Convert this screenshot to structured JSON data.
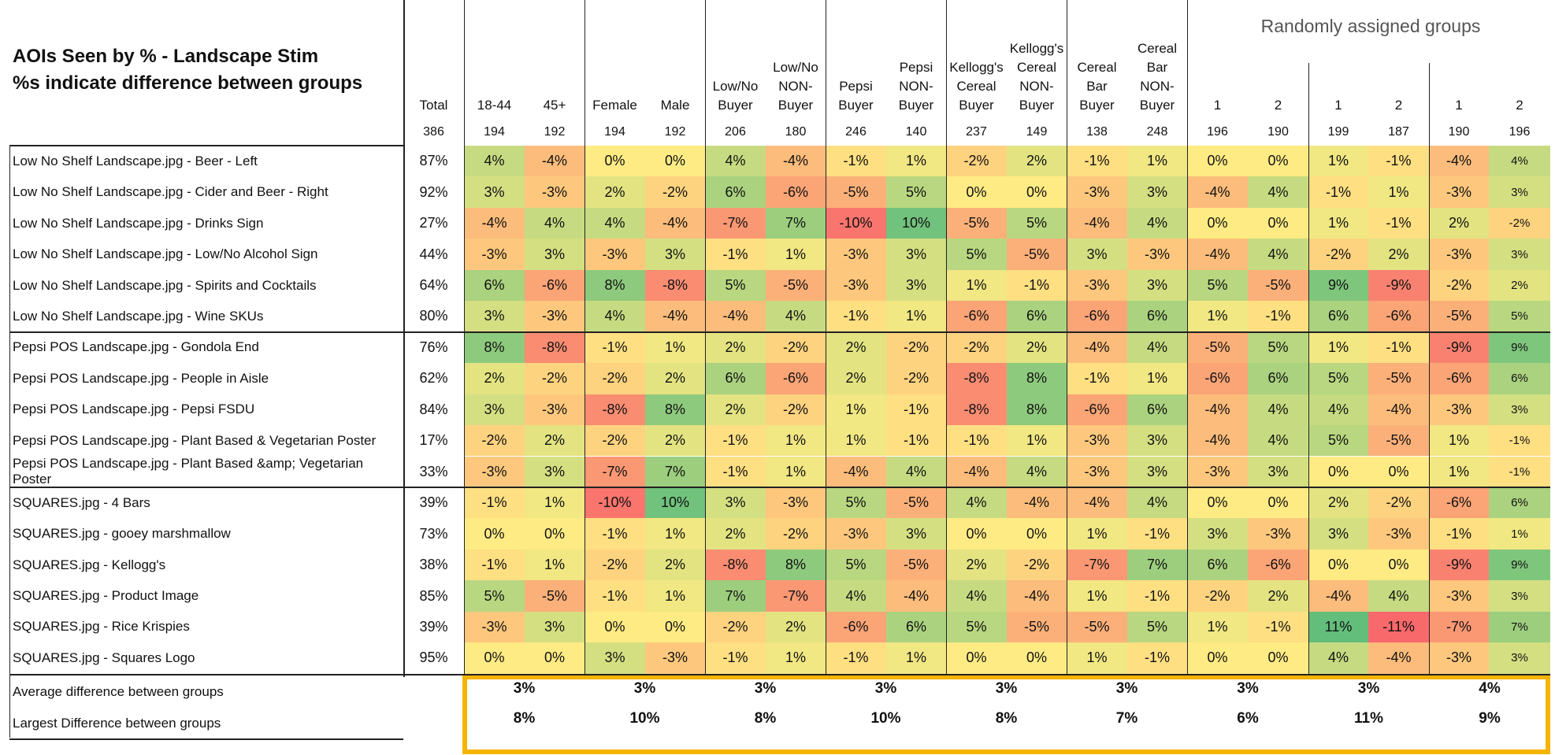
{
  "title_line1": "AOIs Seen by % - Landscape Stim",
  "title_line2": "%s indicate difference between groups",
  "random_groups_label": "Randomly assigned groups",
  "columns": [
    {
      "label": "Total",
      "n": "386"
    },
    {
      "label": "18-44",
      "n": "194"
    },
    {
      "label": "45+",
      "n": "192"
    },
    {
      "label": "Female",
      "n": "194"
    },
    {
      "label": "Male",
      "n": "192"
    },
    {
      "label": "Low/No\nBuyer",
      "n": "206"
    },
    {
      "label": "Low/No\nNON-\nBuyer",
      "n": "180"
    },
    {
      "label": "Pepsi\nBuyer",
      "n": "246"
    },
    {
      "label": "Pepsi\nNON-\nBuyer",
      "n": "140"
    },
    {
      "label": "Kellogg's\nCereal\nBuyer",
      "n": "237"
    },
    {
      "label": "Kellogg's\nCereal\nNON-\nBuyer",
      "n": "149"
    },
    {
      "label": "Cereal\nBar\nBuyer",
      "n": "138"
    },
    {
      "label": "Cereal\nBar\nNON-\nBuyer",
      "n": "248"
    },
    {
      "label": "1",
      "n": "196"
    },
    {
      "label": "2",
      "n": "190"
    },
    {
      "label": "1",
      "n": "199"
    },
    {
      "label": "2",
      "n": "187"
    },
    {
      "label": "1",
      "n": "190"
    },
    {
      "label": "2",
      "n": "196"
    }
  ],
  "rows": [
    {
      "label": "Low No Shelf Landscape.jpg - Beer - Left",
      "total": "87%",
      "values": [
        4,
        -4,
        0,
        0,
        4,
        -4,
        -1,
        1,
        -2,
        2,
        -1,
        1,
        0,
        0,
        1,
        -1,
        -4,
        4
      ]
    },
    {
      "label": "Low No Shelf Landscape.jpg - Cider and Beer  - Right",
      "total": "92%",
      "values": [
        3,
        -3,
        2,
        -2,
        6,
        -6,
        -5,
        5,
        0,
        0,
        -3,
        3,
        -4,
        4,
        -1,
        1,
        -3,
        3
      ]
    },
    {
      "label": "Low No Shelf Landscape.jpg - Drinks Sign",
      "total": "27%",
      "values": [
        -4,
        4,
        4,
        -4,
        -7,
        7,
        -10,
        10,
        -5,
        5,
        -4,
        4,
        0,
        0,
        1,
        -1,
        2,
        -2
      ]
    },
    {
      "label": "Low No Shelf Landscape.jpg - Low/No Alcohol Sign",
      "total": "44%",
      "values": [
        -3,
        3,
        -3,
        3,
        -1,
        1,
        -3,
        3,
        5,
        -5,
        3,
        -3,
        -4,
        4,
        -2,
        2,
        -3,
        3
      ]
    },
    {
      "label": "Low No Shelf Landscape.jpg - Spirits and Cocktails",
      "total": "64%",
      "values": [
        6,
        -6,
        8,
        -8,
        5,
        -5,
        -3,
        3,
        1,
        -1,
        -3,
        3,
        5,
        -5,
        9,
        -9,
        -2,
        2
      ]
    },
    {
      "label": "Low No Shelf Landscape.jpg - Wine SKUs",
      "total": "80%",
      "values": [
        3,
        -3,
        4,
        -4,
        -4,
        4,
        -1,
        1,
        -6,
        6,
        -6,
        6,
        1,
        -1,
        6,
        -6,
        -5,
        5
      ]
    },
    {
      "label": "Pepsi POS Landscape.jpg - Gondola End",
      "total": "76%",
      "values": [
        8,
        -8,
        -1,
        1,
        2,
        -2,
        2,
        -2,
        -2,
        2,
        -4,
        4,
        -5,
        5,
        1,
        -1,
        -9,
        9
      ]
    },
    {
      "label": "Pepsi POS Landscape.jpg - People in Aisle",
      "total": "62%",
      "values": [
        2,
        -2,
        -2,
        2,
        6,
        -6,
        2,
        -2,
        -8,
        8,
        -1,
        1,
        -6,
        6,
        5,
        -5,
        -6,
        6
      ]
    },
    {
      "label": "Pepsi POS Landscape.jpg - Pepsi FSDU",
      "total": "84%",
      "values": [
        3,
        -3,
        -8,
        8,
        2,
        -2,
        1,
        -1,
        -8,
        8,
        -6,
        6,
        -4,
        4,
        4,
        -4,
        -3,
        3
      ]
    },
    {
      "label": "Pepsi POS Landscape.jpg - Plant Based & Vegetarian  Poster",
      "total": "17%",
      "values": [
        -2,
        2,
        -2,
        2,
        -1,
        1,
        1,
        -1,
        -1,
        1,
        -3,
        3,
        -4,
        4,
        5,
        -5,
        1,
        -1
      ]
    },
    {
      "label": "Pepsi POS Landscape.jpg - Plant Based &amp; Vegetarian Poster",
      "total": "33%",
      "values": [
        -3,
        3,
        -7,
        7,
        -1,
        1,
        -4,
        4,
        -4,
        4,
        -3,
        3,
        -3,
        3,
        0,
        0,
        1,
        -1
      ]
    },
    {
      "label": "SQUARES.jpg - 4 Bars",
      "total": "39%",
      "values": [
        -1,
        1,
        -10,
        10,
        3,
        -3,
        5,
        -5,
        4,
        -4,
        -4,
        4,
        0,
        0,
        2,
        -2,
        -6,
        6
      ]
    },
    {
      "label": "SQUARES.jpg - gooey marshmallow",
      "total": "73%",
      "values": [
        0,
        0,
        -1,
        1,
        2,
        -2,
        -3,
        3,
        0,
        0,
        1,
        -1,
        3,
        -3,
        3,
        -3,
        -1,
        1
      ]
    },
    {
      "label": "SQUARES.jpg - Kellogg's",
      "total": "38%",
      "values": [
        -1,
        1,
        -2,
        2,
        -8,
        8,
        5,
        -5,
        2,
        -2,
        -7,
        7,
        6,
        -6,
        0,
        0,
        -9,
        9
      ]
    },
    {
      "label": "SQUARES.jpg - Product Image",
      "total": "85%",
      "values": [
        5,
        -5,
        -1,
        1,
        7,
        -7,
        4,
        -4,
        4,
        -4,
        1,
        -1,
        -2,
        2,
        -4,
        4,
        -3,
        3
      ]
    },
    {
      "label": "SQUARES.jpg - Rice Krispies",
      "total": "39%",
      "values": [
        -3,
        3,
        0,
        0,
        -2,
        2,
        -6,
        6,
        5,
        -5,
        -5,
        5,
        1,
        -1,
        11,
        -11,
        -7,
        7
      ]
    },
    {
      "label": "SQUARES.jpg - Squares Logo",
      "total": "95%",
      "values": [
        0,
        0,
        3,
        -3,
        -1,
        1,
        -1,
        1,
        0,
        0,
        1,
        -1,
        0,
        0,
        4,
        -4,
        -3,
        3
      ]
    }
  ],
  "summary": {
    "avg_label": "Average  difference between groups",
    "max_label": "Largest Difference between groups",
    "avg": [
      "3%",
      "3%",
      "3%",
      "3%",
      "3%",
      "3%",
      "3%",
      "3%",
      "4%"
    ],
    "max": [
      "8%",
      "10%",
      "8%",
      "10%",
      "8%",
      "7%",
      "6%",
      "11%",
      "9%"
    ]
  },
  "colors": {
    "negative": "#f8696b",
    "neutral": "#ffeb84",
    "positive": "#63be7b",
    "highlight_box": "#f5b400"
  }
}
